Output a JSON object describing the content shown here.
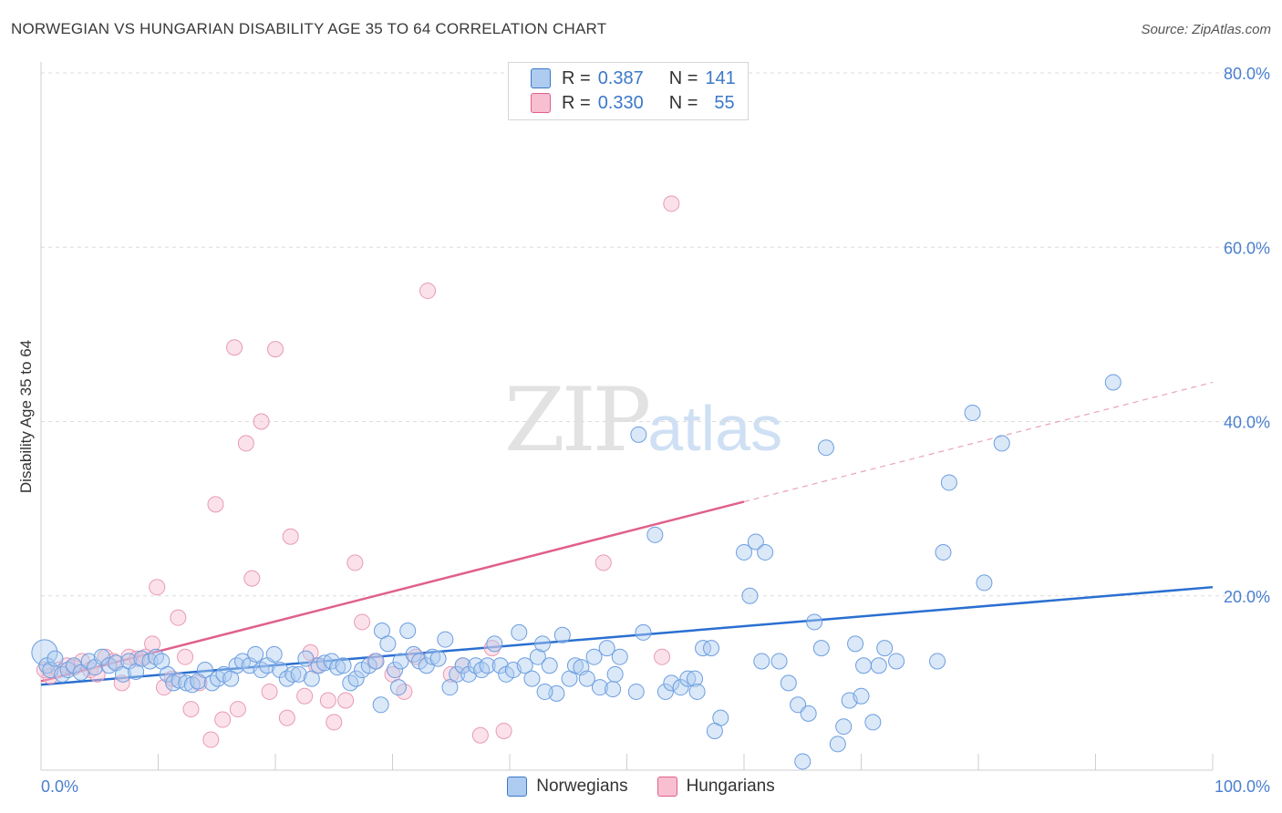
{
  "header": {
    "title": "NORWEGIAN VS HUNGARIAN DISABILITY AGE 35 TO 64 CORRELATION CHART",
    "source": "Source: ZipAtlas.com"
  },
  "watermark": {
    "zip": "ZIP",
    "atlas": "atlas"
  },
  "legend": {
    "rows": [
      {
        "r_label": "R =",
        "r_value": "0.387",
        "n_label": "N =",
        "n_value": "141",
        "color": "#aecbf0"
      },
      {
        "r_label": "R =",
        "r_value": "0.330",
        "n_label": "N =",
        "n_value": "55",
        "color": "#f7bfd0"
      }
    ]
  },
  "bottom_legend": {
    "norwegians": "Norwegians",
    "hungarians": "Hungarians"
  },
  "chart_data": {
    "type": "scatter",
    "title": "NORWEGIAN VS HUNGARIAN DISABILITY AGE 35 TO 64 CORRELATION CHART",
    "xlabel": "",
    "ylabel": "Disability Age 35 to 64",
    "xlim": [
      0,
      100
    ],
    "ylim": [
      0,
      80
    ],
    "x_tick_labels": [
      "0.0%",
      "100.0%"
    ],
    "y_tick_labels": [
      "20.0%",
      "40.0%",
      "60.0%",
      "80.0%"
    ],
    "y_ticks": [
      20,
      40,
      60,
      80
    ],
    "grid": true,
    "legend_placement": "top-center",
    "colors": {
      "norwegians": "#3b78c9",
      "norwegians_fill": "#aecbf0",
      "hungarians": "#e0608a",
      "hungarians_fill": "#f7bfd0"
    },
    "series": [
      {
        "name": "Norwegians",
        "trend": {
          "x": [
            0,
            100
          ],
          "y": [
            9.8,
            21.0
          ]
        },
        "points": [
          [
            0.3,
            13.5
          ],
          [
            0.5,
            12.0
          ],
          [
            0.8,
            11.5
          ],
          [
            1.2,
            12.8
          ],
          [
            1.8,
            11.0
          ],
          [
            2.3,
            11.5
          ],
          [
            2.8,
            12.0
          ],
          [
            3.4,
            11.2
          ],
          [
            4.1,
            12.5
          ],
          [
            4.6,
            11.8
          ],
          [
            5.2,
            13.0
          ],
          [
            5.8,
            12.0
          ],
          [
            6.4,
            12.3
          ],
          [
            7.0,
            11.0
          ],
          [
            7.5,
            12.5
          ],
          [
            8.1,
            11.3
          ],
          [
            8.6,
            12.8
          ],
          [
            9.3,
            12.5
          ],
          [
            9.8,
            13.0
          ],
          [
            10.3,
            12.5
          ],
          [
            10.8,
            11.0
          ],
          [
            11.3,
            10.0
          ],
          [
            11.8,
            10.3
          ],
          [
            12.4,
            10.0
          ],
          [
            12.9,
            9.8
          ],
          [
            13.4,
            10.2
          ],
          [
            14.0,
            11.5
          ],
          [
            14.6,
            10.0
          ],
          [
            15.1,
            10.5
          ],
          [
            15.6,
            11.0
          ],
          [
            16.2,
            10.5
          ],
          [
            16.7,
            12.0
          ],
          [
            17.2,
            12.5
          ],
          [
            17.8,
            12.0
          ],
          [
            18.3,
            13.3
          ],
          [
            18.8,
            11.5
          ],
          [
            19.3,
            12.0
          ],
          [
            19.9,
            13.3
          ],
          [
            20.4,
            11.5
          ],
          [
            21.0,
            10.5
          ],
          [
            21.5,
            11.0
          ],
          [
            22.0,
            11.0
          ],
          [
            22.6,
            12.8
          ],
          [
            23.1,
            10.5
          ],
          [
            23.7,
            12.0
          ],
          [
            24.2,
            12.3
          ],
          [
            24.8,
            12.5
          ],
          [
            25.3,
            11.8
          ],
          [
            25.8,
            12.0
          ],
          [
            26.4,
            10.0
          ],
          [
            26.9,
            10.5
          ],
          [
            27.4,
            11.5
          ],
          [
            28.0,
            12.0
          ],
          [
            28.6,
            12.5
          ],
          [
            29.1,
            16.0
          ],
          [
            29.6,
            14.5
          ],
          [
            30.2,
            11.5
          ],
          [
            30.7,
            12.5
          ],
          [
            31.3,
            16.0
          ],
          [
            31.8,
            13.3
          ],
          [
            32.3,
            12.5
          ],
          [
            32.9,
            12.0
          ],
          [
            33.4,
            13.0
          ],
          [
            33.9,
            12.8
          ],
          [
            34.5,
            15.0
          ],
          [
            34.9,
            9.5
          ],
          [
            35.5,
            11.0
          ],
          [
            36.0,
            12.0
          ],
          [
            36.5,
            11.0
          ],
          [
            37.1,
            12.0
          ],
          [
            37.6,
            11.5
          ],
          [
            38.1,
            12.0
          ],
          [
            38.7,
            14.5
          ],
          [
            39.2,
            12.0
          ],
          [
            39.7,
            11.0
          ],
          [
            40.3,
            11.5
          ],
          [
            40.8,
            15.8
          ],
          [
            41.3,
            12.0
          ],
          [
            41.9,
            10.5
          ],
          [
            42.4,
            13.0
          ],
          [
            42.8,
            14.5
          ],
          [
            43.4,
            12.0
          ],
          [
            44.0,
            8.8
          ],
          [
            44.5,
            15.5
          ],
          [
            45.1,
            10.5
          ],
          [
            45.6,
            12.0
          ],
          [
            46.1,
            11.8
          ],
          [
            46.6,
            10.5
          ],
          [
            47.2,
            13.0
          ],
          [
            47.7,
            9.5
          ],
          [
            48.3,
            14.0
          ],
          [
            48.8,
            9.3
          ],
          [
            49.4,
            13.0
          ],
          [
            50.8,
            9.0
          ],
          [
            51.4,
            15.8
          ],
          [
            52.4,
            27.0
          ],
          [
            53.3,
            9.0
          ],
          [
            53.8,
            10.0
          ],
          [
            54.6,
            9.5
          ],
          [
            55.2,
            10.5
          ],
          [
            55.8,
            10.5
          ],
          [
            56.5,
            14.0
          ],
          [
            57.2,
            14.0
          ],
          [
            58.0,
            6.0
          ],
          [
            60.0,
            25.0
          ],
          [
            60.5,
            20.0
          ],
          [
            61.0,
            26.2
          ],
          [
            61.8,
            25.0
          ],
          [
            63.8,
            10.0
          ],
          [
            64.6,
            7.5
          ],
          [
            65.0,
            1.0
          ],
          [
            66.0,
            17.0
          ],
          [
            66.6,
            14.0
          ],
          [
            67.0,
            37.0
          ],
          [
            68.0,
            3.0
          ],
          [
            68.5,
            5.0
          ],
          [
            69.0,
            8.0
          ],
          [
            69.5,
            14.5
          ],
          [
            70.2,
            12.0
          ],
          [
            71.0,
            5.5
          ],
          [
            71.5,
            12.0
          ],
          [
            72.0,
            14.0
          ],
          [
            76.5,
            12.5
          ],
          [
            77.0,
            25.0
          ],
          [
            77.5,
            33.0
          ],
          [
            79.5,
            41.0
          ],
          [
            80.5,
            21.5
          ],
          [
            82.0,
            37.5
          ],
          [
            91.5,
            44.5
          ],
          [
            29.0,
            7.5
          ],
          [
            51.0,
            38.5
          ],
          [
            63.0,
            12.5
          ],
          [
            57.5,
            4.5
          ],
          [
            65.5,
            6.5
          ],
          [
            70.0,
            8.5
          ],
          [
            30.5,
            9.5
          ],
          [
            43.0,
            9.0
          ],
          [
            49.0,
            11.0
          ],
          [
            56.0,
            9.0
          ],
          [
            61.5,
            12.5
          ],
          [
            73.0,
            12.5
          ]
        ]
      },
      {
        "name": "Hungarians",
        "trend": {
          "x": [
            0,
            60
          ],
          "y": [
            10.2,
            30.8
          ]
        },
        "trend_dashed": {
          "x": [
            60,
            100
          ],
          "y": [
            30.8,
            44.5
          ]
        },
        "points": [
          [
            0.3,
            11.5
          ],
          [
            0.8,
            10.8
          ],
          [
            1.5,
            11.5
          ],
          [
            2.2,
            12.0
          ],
          [
            2.8,
            11.8
          ],
          [
            3.5,
            12.5
          ],
          [
            4.2,
            11.5
          ],
          [
            4.8,
            11.0
          ],
          [
            5.5,
            13.0
          ],
          [
            6.2,
            12.5
          ],
          [
            6.9,
            10.0
          ],
          [
            7.5,
            13.0
          ],
          [
            8.2,
            12.8
          ],
          [
            8.9,
            13.0
          ],
          [
            9.5,
            14.5
          ],
          [
            9.9,
            21.0
          ],
          [
            10.5,
            9.5
          ],
          [
            11.2,
            10.5
          ],
          [
            11.7,
            17.5
          ],
          [
            12.3,
            13.0
          ],
          [
            12.8,
            7.0
          ],
          [
            13.5,
            10.0
          ],
          [
            14.5,
            3.5
          ],
          [
            14.9,
            30.5
          ],
          [
            15.5,
            5.8
          ],
          [
            16.5,
            48.5
          ],
          [
            16.8,
            7.0
          ],
          [
            17.5,
            37.5
          ],
          [
            18.0,
            22.0
          ],
          [
            18.8,
            40.0
          ],
          [
            19.5,
            9.0
          ],
          [
            20.0,
            48.3
          ],
          [
            21.0,
            6.0
          ],
          [
            21.3,
            26.8
          ],
          [
            22.5,
            8.5
          ],
          [
            23.0,
            13.5
          ],
          [
            23.5,
            12.0
          ],
          [
            24.5,
            8.0
          ],
          [
            25.0,
            5.5
          ],
          [
            26.0,
            8.0
          ],
          [
            26.8,
            23.8
          ],
          [
            27.4,
            17.0
          ],
          [
            28.5,
            12.5
          ],
          [
            30.0,
            11.0
          ],
          [
            31.0,
            9.0
          ],
          [
            32.0,
            13.0
          ],
          [
            33.0,
            55.0
          ],
          [
            35.0,
            11.0
          ],
          [
            37.5,
            4.0
          ],
          [
            38.5,
            14.0
          ],
          [
            39.5,
            4.5
          ],
          [
            48.0,
            23.8
          ],
          [
            53.0,
            13.0
          ],
          [
            53.8,
            65.0
          ],
          [
            36.0,
            12.0
          ]
        ]
      }
    ]
  }
}
